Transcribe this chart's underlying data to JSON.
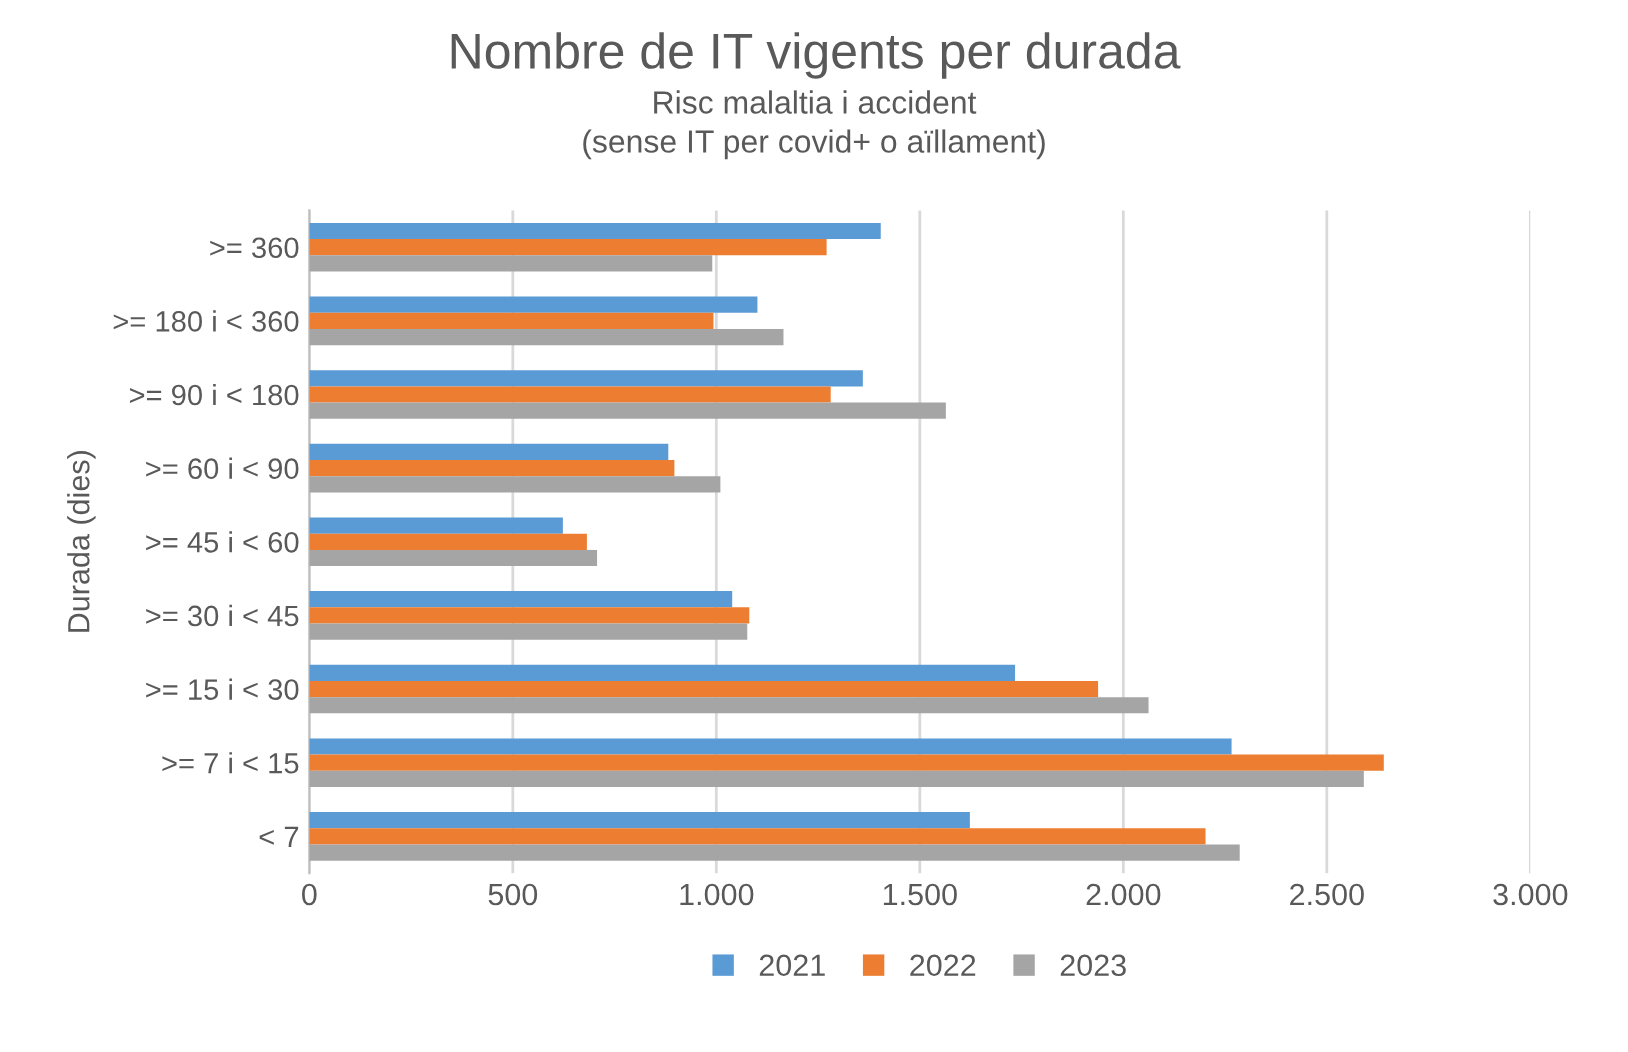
{
  "chart_data": {
    "type": "bar",
    "orientation": "horizontal",
    "title": "Nombre de IT vigents per durada",
    "subtitle": "Risc malaltia i accident\n(sense IT per covid+ o aïllament)",
    "ylabel": "Durada (dies)",
    "categories": [
      ">= 360",
      ">= 180 i < 360",
      ">= 90 i < 180",
      ">= 60 i < 90",
      ">= 45 i < 60",
      ">= 30 i < 45",
      ">= 15 i < 30",
      ">= 7 i < 15",
      "< 7"
    ],
    "series": [
      {
        "name": "2021",
        "color": "#5b9bd5",
        "values": [
          1404,
          1101,
          1360,
          882,
          623,
          1039,
          1734,
          2266,
          1623
        ]
      },
      {
        "name": "2022",
        "color": "#ed7d31",
        "values": [
          1271,
          993,
          1281,
          897,
          682,
          1081,
          1938,
          2640,
          2202
        ]
      },
      {
        "name": "2023",
        "color": "#a5a5a5",
        "values": [
          990,
          1165,
          1564,
          1010,
          707,
          1076,
          2062,
          2591,
          2286
        ]
      }
    ],
    "xlim": [
      0,
      3000
    ],
    "xticks": [
      0,
      500,
      {
        "value": 1000,
        "label": "1.000"
      },
      {
        "value": 1500,
        "label": "1.500"
      },
      {
        "value": 2000,
        "label": "2.000"
      },
      {
        "value": 2500,
        "label": "2.500"
      },
      {
        "value": 3000,
        "label": "3.000"
      }
    ],
    "grid": "x",
    "legend": "bottom"
  }
}
